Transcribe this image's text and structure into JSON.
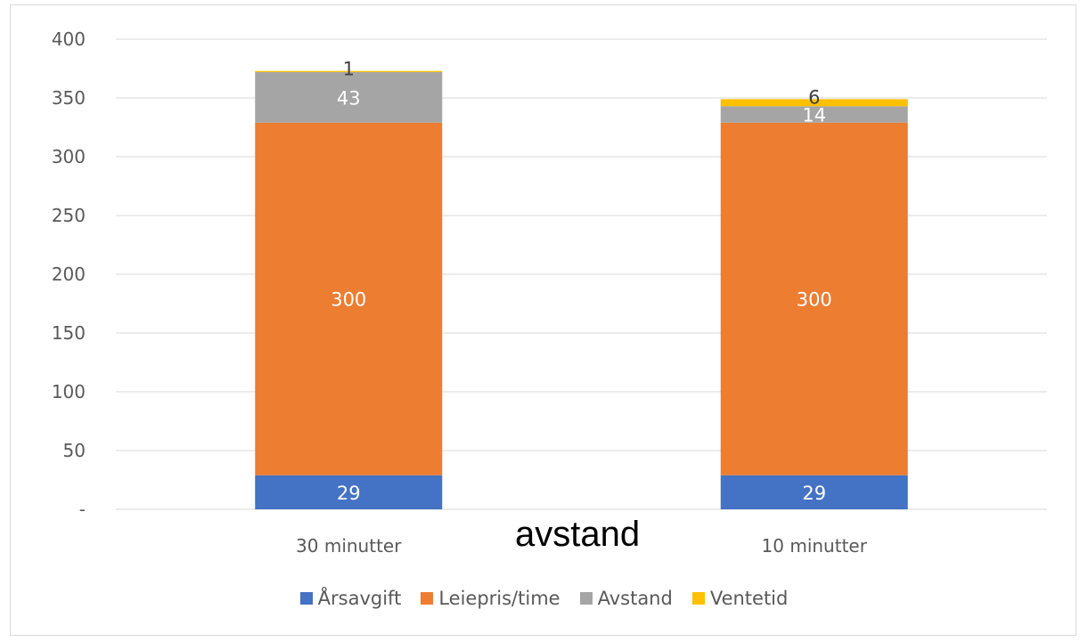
{
  "chart_data": {
    "type": "bar",
    "stacked": true,
    "categories": [
      "30 minutter",
      "10 minutter"
    ],
    "series": [
      {
        "name": "Årsavgift",
        "color": "#4472c4",
        "values": [
          29,
          29
        ],
        "labels": [
          "29",
          "29"
        ]
      },
      {
        "name": "Leiepris/time",
        "color": "#ed7d31",
        "values": [
          300,
          300
        ],
        "labels": [
          "300",
          "300"
        ]
      },
      {
        "name": "Avstand",
        "color": "#a5a5a5",
        "values": [
          43,
          14
        ],
        "labels": [
          "43",
          "14"
        ]
      },
      {
        "name": "Ventetid",
        "color": "#ffc000",
        "values": [
          1,
          6
        ],
        "labels": [
          "1",
          "6"
        ]
      }
    ],
    "yticks": [
      "-",
      "50",
      "100",
      "150",
      "200",
      "250",
      "300",
      "350",
      "400"
    ],
    "ylim": [
      0,
      400
    ],
    "grid": true,
    "legend_position": "bottom",
    "overlay_text": "avstand"
  }
}
